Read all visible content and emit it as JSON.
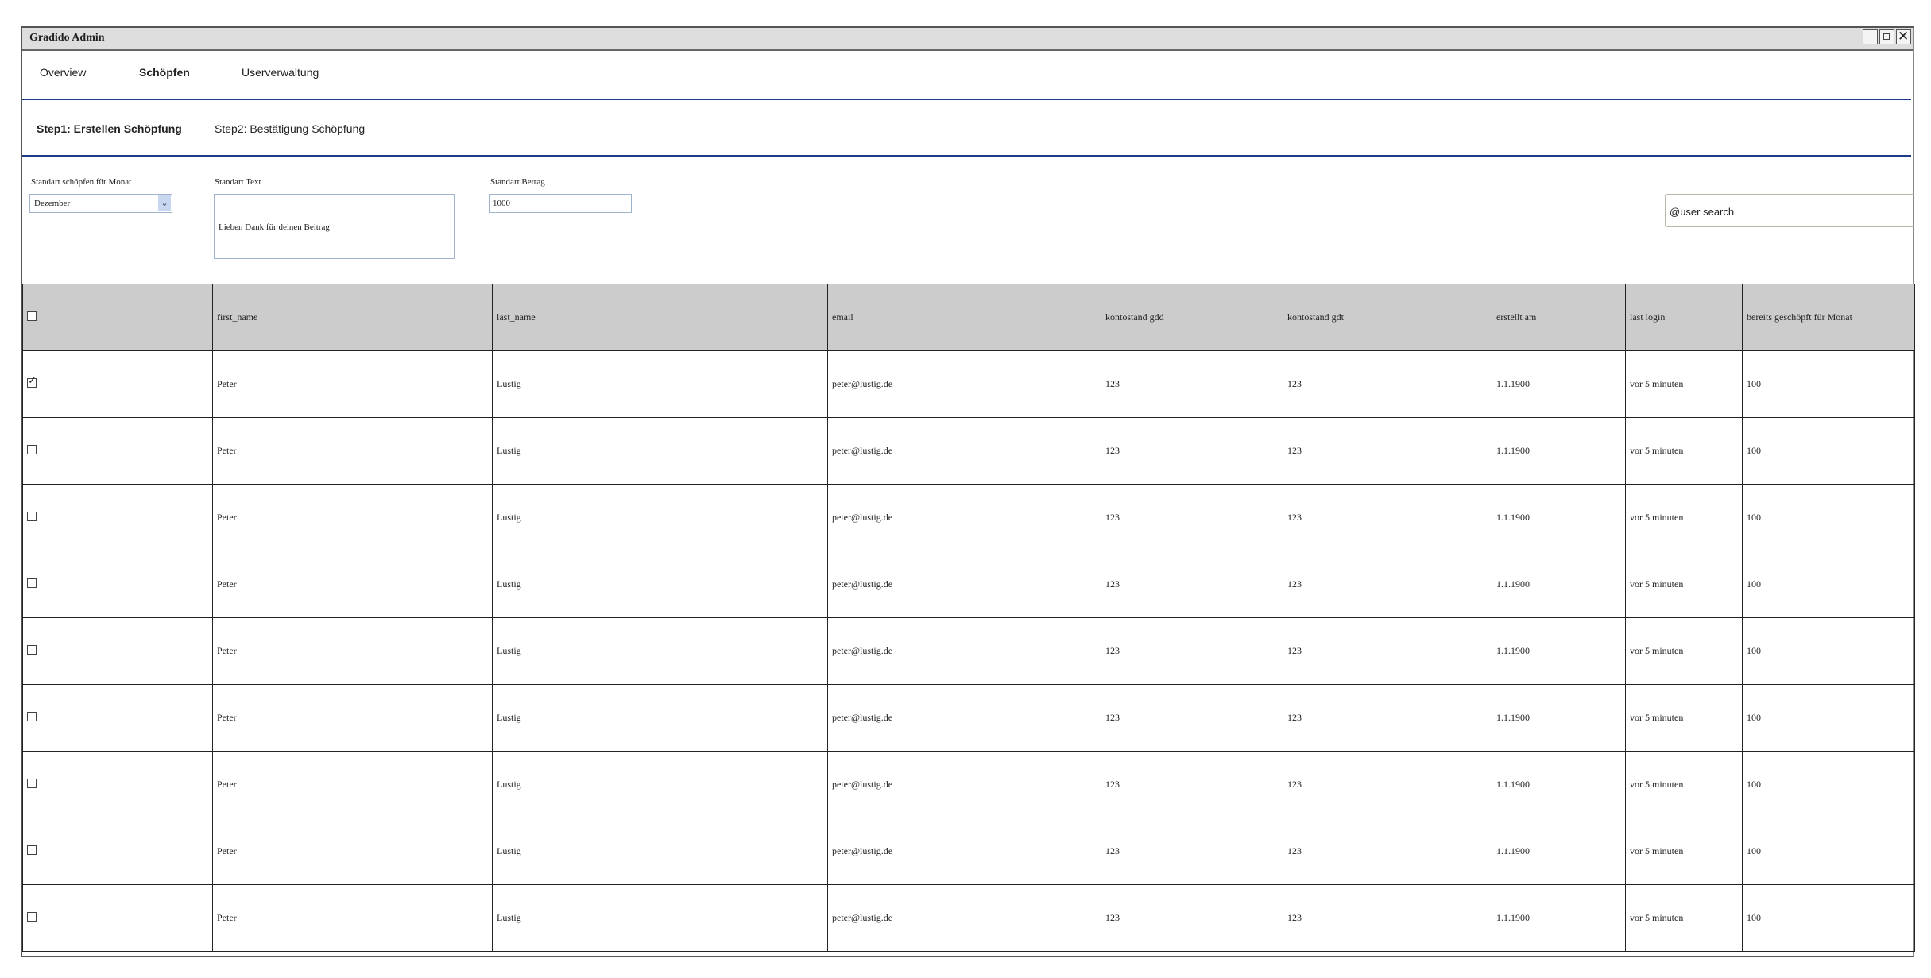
{
  "window": {
    "title": "Gradido Admin"
  },
  "nav": {
    "items": [
      {
        "label": "Overview",
        "active": false
      },
      {
        "label": "Schöpfen",
        "active": true
      },
      {
        "label": "Userverwaltung",
        "active": false
      }
    ]
  },
  "steps": [
    {
      "label": "Step1: Erstellen Schöpfung",
      "active": true
    },
    {
      "label": "Step2: Bestätigung Schöpfung",
      "active": false
    }
  ],
  "form": {
    "month_label": "Standart schöpfen für Monat",
    "month_value": "Dezember",
    "text_label": "Standart Text",
    "text_value": "Lieben Dank für deinen Beitrag",
    "amount_label": "Standart Betrag",
    "amount_value": "1000",
    "search_placeholder": "@user search"
  },
  "table": {
    "headers": [
      "first_name",
      "last_name",
      "email",
      "kontostand gdd",
      "kontostand gdt",
      "erstellt am",
      "last login",
      "bereits geschöpft für Monat"
    ],
    "rows": [
      {
        "checked": true,
        "cells": [
          "Peter",
          "Lustig",
          "peter@lustig.de",
          "123",
          "123",
          "1.1.1900",
          "vor 5 minuten",
          "100"
        ]
      },
      {
        "checked": false,
        "cells": [
          "Peter",
          "Lustig",
          "peter@lustig.de",
          "123",
          "123",
          "1.1.1900",
          "vor 5 minuten",
          "100"
        ]
      },
      {
        "checked": false,
        "cells": [
          "Peter",
          "Lustig",
          "peter@lustig.de",
          "123",
          "123",
          "1.1.1900",
          "vor 5 minuten",
          "100"
        ]
      },
      {
        "checked": false,
        "cells": [
          "Peter",
          "Lustig",
          "peter@lustig.de",
          "123",
          "123",
          "1.1.1900",
          "vor 5 minuten",
          "100"
        ]
      },
      {
        "checked": false,
        "cells": [
          "Peter",
          "Lustig",
          "peter@lustig.de",
          "123",
          "123",
          "1.1.1900",
          "vor 5 minuten",
          "100"
        ]
      },
      {
        "checked": false,
        "cells": [
          "Peter",
          "Lustig",
          "peter@lustig.de",
          "123",
          "123",
          "1.1.1900",
          "vor 5 minuten",
          "100"
        ]
      },
      {
        "checked": false,
        "cells": [
          "Peter",
          "Lustig",
          "peter@lustig.de",
          "123",
          "123",
          "1.1.1900",
          "vor 5 minuten",
          "100"
        ]
      },
      {
        "checked": false,
        "cells": [
          "Peter",
          "Lustig",
          "peter@lustig.de",
          "123",
          "123",
          "1.1.1900",
          "vor 5 minuten",
          "100"
        ]
      },
      {
        "checked": false,
        "cells": [
          "Peter",
          "Lustig",
          "peter@lustig.de",
          "123",
          "123",
          "1.1.1900",
          "vor 5 minuten",
          "100"
        ]
      }
    ]
  },
  "colors": {
    "accent_line": "#1f3a8a",
    "header_bg": "#cccccc",
    "titlebar_bg": "#dedede"
  }
}
